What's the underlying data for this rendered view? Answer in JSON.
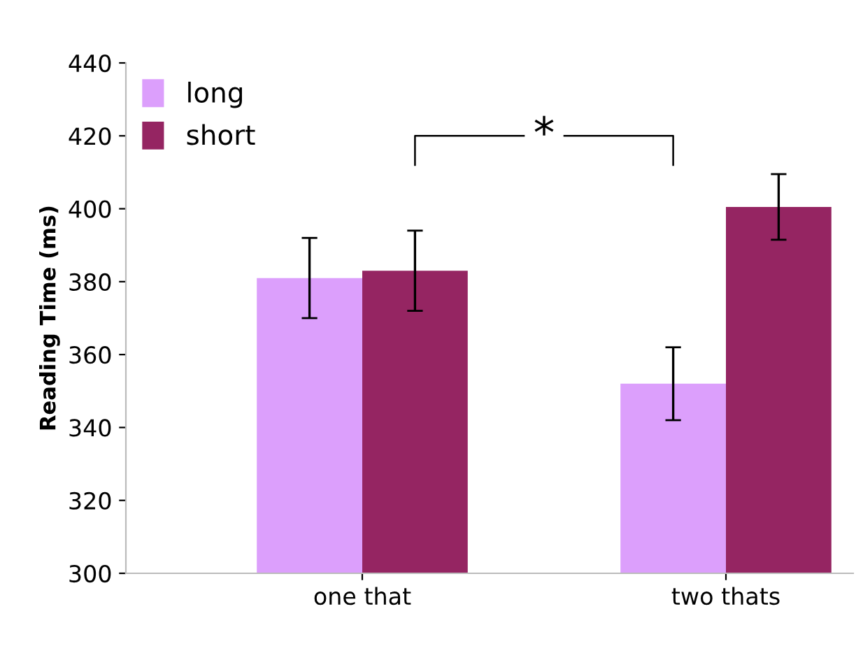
{
  "chart_data": {
    "type": "bar",
    "ylabel": "Reading Time (ms)",
    "categories": [
      "one that",
      "two thats"
    ],
    "series": [
      {
        "name": "long",
        "color": "#dc9ffc",
        "values": [
          381,
          352
        ],
        "errors": [
          11,
          10
        ]
      },
      {
        "name": "short",
        "color": "#952562",
        "values": [
          383,
          400.5
        ],
        "errors": [
          11,
          9
        ]
      }
    ],
    "ylim": [
      300,
      440
    ],
    "yticks": [
      300,
      320,
      340,
      360,
      380,
      400,
      420,
      440
    ],
    "grid": false,
    "legend": "top left",
    "annotations": [
      "*"
    ]
  }
}
